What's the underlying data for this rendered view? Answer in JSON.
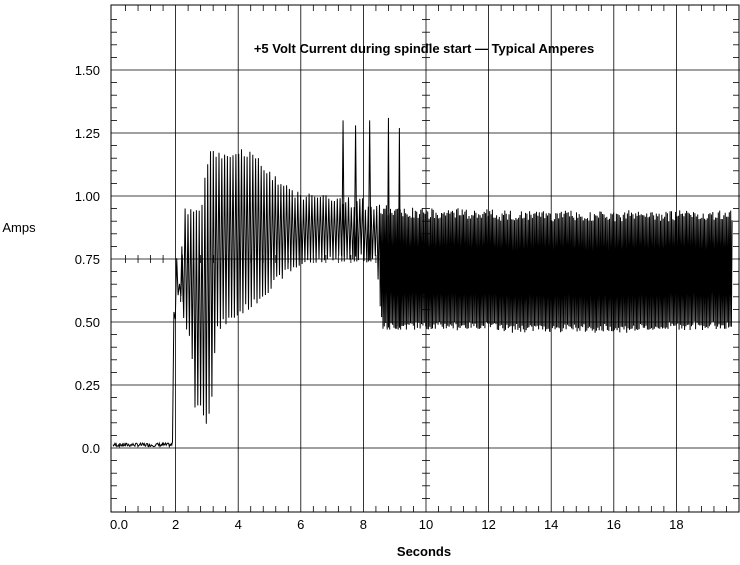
{
  "chart_data": {
    "type": "line",
    "title": "+5 Volt Current during spindle start — Typical Amperes",
    "xlabel": "Seconds",
    "ylabel": "Amps",
    "xlim": [
      0,
      19.8
    ],
    "ylim": [
      -0.25,
      1.75
    ],
    "x_ticks": [
      0,
      2,
      4,
      6,
      8,
      10,
      12,
      14,
      16,
      18
    ],
    "x_tick_labels": [
      "0.0",
      "2",
      "4",
      "6",
      "8",
      "10",
      "12",
      "14",
      "16",
      "18"
    ],
    "y_ticks": [
      0.0,
      0.25,
      0.5,
      0.75,
      1.0,
      1.25,
      1.5
    ],
    "y_tick_labels": [
      "0.0",
      "0.25",
      "0.50",
      "0.75",
      "1.00",
      "1.25",
      "1.50"
    ],
    "grid": true,
    "series": [
      {
        "color": "#000000",
        "x": [
          0,
          1.9,
          1.9,
          1.95,
          2.0,
          2.05,
          2.1,
          2.15,
          2.2,
          2.3,
          2.5,
          2.6,
          2.8,
          3.0,
          3.15,
          3.3,
          3.5,
          3.8,
          4.1,
          4.5,
          5.0,
          5.5,
          6.0,
          6.5,
          7.0,
          7.5,
          8.0,
          8.4,
          8.6,
          9.0,
          9.5,
          10.0,
          11.0,
          12.0,
          12.6,
          13.0,
          14.0,
          15.0,
          16.0,
          17.0,
          18.0,
          19.0,
          19.8
        ],
        "y_upper": [
          0.02,
          0.02,
          0.18,
          0.6,
          0.66,
          0.8,
          0.65,
          0.7,
          0.75,
          0.98,
          0.95,
          0.96,
          0.94,
          1.15,
          1.2,
          1.19,
          1.18,
          1.18,
          1.2,
          1.18,
          1.1,
          1.05,
          1.02,
          1.02,
          1.01,
          1.0,
          0.99,
          0.97,
          0.96,
          0.96,
          0.95,
          0.95,
          0.95,
          0.95,
          0.94,
          0.94,
          0.94,
          0.94,
          0.94,
          0.94,
          0.94,
          0.94,
          0.94
        ],
        "y_lower": [
          0.0,
          0.0,
          0.0,
          0.01,
          0.6,
          0.6,
          0.6,
          0.62,
          0.58,
          0.46,
          0.42,
          0.16,
          0.15,
          0.09,
          0.18,
          0.45,
          0.48,
          0.5,
          0.53,
          0.56,
          0.62,
          0.68,
          0.72,
          0.73,
          0.74,
          0.74,
          0.74,
          0.74,
          0.47,
          0.47,
          0.47,
          0.47,
          0.47,
          0.47,
          0.46,
          0.46,
          0.46,
          0.46,
          0.46,
          0.46,
          0.47,
          0.47,
          0.47
        ],
        "spikes": [
          {
            "x": 2.2,
            "y": 0.8
          },
          {
            "x": 7.35,
            "y": 1.3
          },
          {
            "x": 7.75,
            "y": 1.28
          },
          {
            "x": 8.2,
            "y": 1.3
          },
          {
            "x": 8.8,
            "y": 1.31
          },
          {
            "x": 9.15,
            "y": 1.27
          }
        ]
      }
    ]
  }
}
